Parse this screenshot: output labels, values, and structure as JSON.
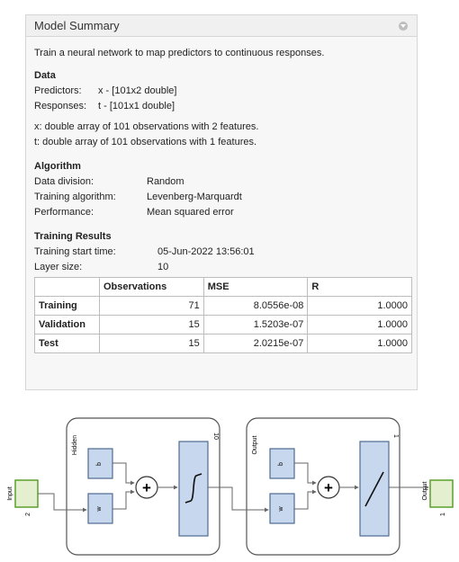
{
  "panel": {
    "title": "Model Summary",
    "description": "Train a neural network to map predictors to continuous responses.",
    "data": {
      "heading": "Data",
      "predictors_label": "Predictors:",
      "predictors_value": "x - [101x2 double]",
      "responses_label": "Responses:",
      "responses_value": "t - [101x1 double]",
      "x_note": "x: double array of 101 observations with 2 features.",
      "t_note": "t: double array of 101 observations with 1 features."
    },
    "algorithm": {
      "heading": "Algorithm",
      "division_label": "Data division:",
      "division_value": "Random",
      "training_label": "Training algorithm:",
      "training_value": "Levenberg-Marquardt",
      "performance_label": "Performance:",
      "performance_value": "Mean squared error"
    },
    "results": {
      "heading": "Training Results",
      "start_label": "Training start time:",
      "start_value": "05-Jun-2022 13:56:01",
      "layer_label": "Layer size:",
      "layer_value": "10",
      "columns": [
        "",
        "Observations",
        "MSE",
        "R"
      ],
      "rows": [
        {
          "name": "Training",
          "obs": "71",
          "mse": "8.0556e-08",
          "r": "1.0000"
        },
        {
          "name": "Validation",
          "obs": "15",
          "mse": "1.5203e-07",
          "r": "1.0000"
        },
        {
          "name": "Test",
          "obs": "15",
          "mse": "2.0215e-07",
          "r": "1.0000"
        }
      ]
    }
  },
  "diagram": {
    "input_label": "Input",
    "input_size": "2",
    "hidden_label": "Hidden",
    "hidden_size": "10",
    "output_layer_label": "Output",
    "output_layer_size": "1",
    "output_label": "Output",
    "output_size": "1",
    "weight_label": "w",
    "bias_label": "b",
    "input_color": "#e3efcf",
    "input_border": "#5aa02c",
    "block_fill": "#c6d7ee",
    "block_border": "#4f6b91"
  }
}
